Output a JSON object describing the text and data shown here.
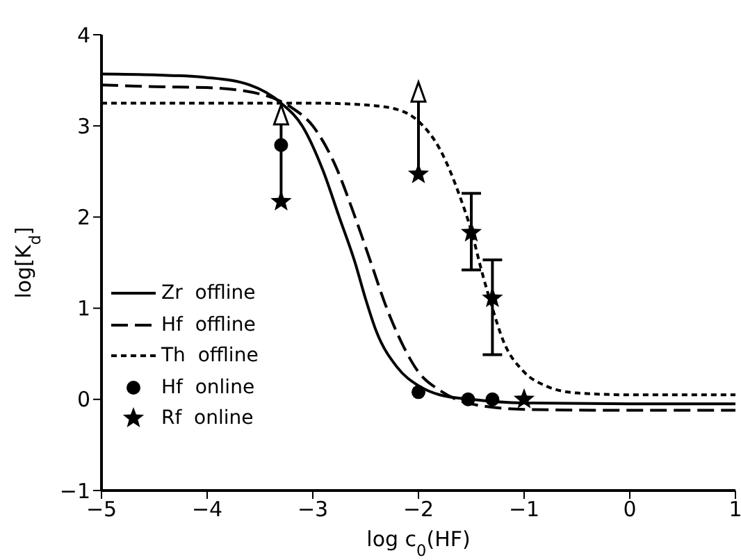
{
  "chart_data": {
    "type": "line",
    "xlabel": "log c$_{0}$(HF)",
    "ylabel": "log[K$_{d}$]",
    "xlim": [
      -5,
      1
    ],
    "xticks": [
      -5,
      -4,
      -3,
      -2,
      -1,
      0,
      1
    ],
    "ylim": [
      -1,
      4
    ],
    "yticks": [
      -1,
      0,
      1,
      2,
      3,
      4
    ],
    "grid": false,
    "legend": "center left",
    "series": [
      {
        "name": "Zr  offline",
        "color": "#000000",
        "line_style": "solid",
        "marker": "none",
        "x": [
          -5,
          -4.5,
          -4,
          -3.6,
          -3.3,
          -3.1,
          -2.9,
          -2.75,
          -2.6,
          -2.5,
          -2.4,
          -2.2,
          -2,
          -1.8,
          -1.5,
          -1,
          0,
          1
        ],
        "values": [
          3.57,
          3.56,
          3.53,
          3.45,
          3.25,
          3.0,
          2.5,
          2.0,
          1.5,
          1.1,
          0.75,
          0.35,
          0.15,
          0.05,
          0.0,
          -0.04,
          -0.05,
          -0.05
        ]
      },
      {
        "name": "Hf  offline",
        "color": "#000000",
        "line_style": "dashed",
        "marker": "none",
        "x": [
          -5,
          -4.5,
          -4,
          -3.5,
          -3.2,
          -3,
          -2.8,
          -2.6,
          -2.45,
          -2.3,
          -2.15,
          -2,
          -1.8,
          -1.5,
          -1,
          0,
          1
        ],
        "values": [
          3.45,
          3.43,
          3.42,
          3.35,
          3.2,
          3.0,
          2.6,
          2.0,
          1.5,
          1.0,
          0.6,
          0.3,
          0.1,
          -0.05,
          -0.11,
          -0.12,
          -0.12
        ]
      },
      {
        "name": "Th  offline",
        "color": "#000000",
        "line_style": "dotted",
        "marker": "none",
        "x": [
          -5,
          -3,
          -2.5,
          -2.2,
          -2,
          -1.8,
          -1.6,
          -1.5,
          -1.4,
          -1.3,
          -1.2,
          -1,
          -0.8,
          -0.5,
          0,
          1
        ],
        "values": [
          3.25,
          3.25,
          3.23,
          3.18,
          3.05,
          2.75,
          2.2,
          1.85,
          1.4,
          1.0,
          0.65,
          0.3,
          0.15,
          0.07,
          0.05,
          0.05
        ]
      },
      {
        "name": "Hf  online",
        "type": "scatter",
        "color": "#000000",
        "marker": "circle",
        "x": [
          -3.3,
          -2,
          -1.53,
          -1.3
        ],
        "values": [
          2.79,
          0.08,
          0.0,
          0.0
        ]
      },
      {
        "name": "Rf  online",
        "type": "scatter",
        "color": "#000000",
        "marker": "star",
        "x": [
          -3.3,
          -2,
          -1.5,
          -1.3,
          -1
        ],
        "values": [
          2.17,
          2.47,
          1.83,
          1.11,
          0.0
        ],
        "errors": [
          [
            2.17,
            3.2
          ],
          [
            2.47,
            3.45
          ],
          [
            1.42,
            2.26
          ],
          [
            0.49,
            1.53
          ],
          null
        ]
      }
    ]
  }
}
